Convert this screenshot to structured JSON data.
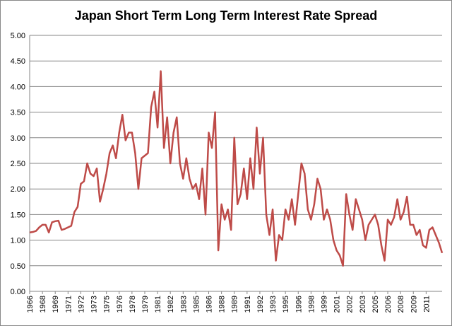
{
  "chart_data": {
    "type": "line",
    "title": "Japan Short Term Long Term Interest Rate Spread",
    "categories": [
      "1966",
      null,
      null,
      null,
      "1968",
      null,
      null,
      null,
      "1969",
      null,
      null,
      null,
      "1971",
      null,
      null,
      null,
      "1972",
      null,
      null,
      null,
      "1973",
      null,
      null,
      null,
      "1975",
      null,
      null,
      null,
      "1976",
      null,
      null,
      null,
      "1978",
      null,
      null,
      null,
      "1979",
      null,
      null,
      null,
      "1981",
      null,
      null,
      null,
      "1982",
      null,
      null,
      null,
      "1983",
      null,
      null,
      null,
      "1985",
      null,
      null,
      null,
      "1986",
      null,
      null,
      null,
      "1988",
      null,
      null,
      null,
      "1989",
      null,
      null,
      null,
      "1991",
      null,
      null,
      null,
      "1992",
      null,
      null,
      null,
      "1993",
      null,
      null,
      null,
      "1995",
      null,
      null,
      null,
      "1996",
      null,
      null,
      null,
      "1998",
      null,
      null,
      null,
      "1999",
      null,
      null,
      null,
      "2001",
      null,
      null,
      null,
      "2002",
      null,
      null,
      null,
      "2003",
      null,
      null,
      null,
      "2005",
      null,
      null,
      null,
      "2006",
      null,
      null,
      null,
      "2008",
      null,
      null,
      null,
      "2009",
      null,
      null,
      null,
      "2011",
      null,
      null,
      null,
      null,
      null
    ],
    "values": [
      1.15,
      1.16,
      1.18,
      1.25,
      1.3,
      1.3,
      1.15,
      1.35,
      1.37,
      1.38,
      1.2,
      1.22,
      1.25,
      1.28,
      1.55,
      1.65,
      2.1,
      2.15,
      2.5,
      2.3,
      2.25,
      2.4,
      1.75,
      2.0,
      2.3,
      2.7,
      2.85,
      2.6,
      3.1,
      3.45,
      2.95,
      3.1,
      3.1,
      2.7,
      2.0,
      2.6,
      2.65,
      2.7,
      3.6,
      3.9,
      3.2,
      4.3,
      2.8,
      3.4,
      2.5,
      3.1,
      3.4,
      2.5,
      2.2,
      2.6,
      2.2,
      2.0,
      2.1,
      1.8,
      2.4,
      1.5,
      3.1,
      2.8,
      3.5,
      0.8,
      1.7,
      1.4,
      1.6,
      1.2,
      3.0,
      1.7,
      1.9,
      2.4,
      1.8,
      2.6,
      2.0,
      3.2,
      2.3,
      3.0,
      1.5,
      1.1,
      1.6,
      0.6,
      1.1,
      1.0,
      1.6,
      1.4,
      1.8,
      1.3,
      1.9,
      2.5,
      2.3,
      1.6,
      1.4,
      1.7,
      2.2,
      2.0,
      1.4,
      1.6,
      1.4,
      1.0,
      0.8,
      0.7,
      0.5,
      1.9,
      1.5,
      1.2,
      1.8,
      1.6,
      1.4,
      1.0,
      1.3,
      1.4,
      1.5,
      1.3,
      0.9,
      0.6,
      1.4,
      1.3,
      1.45,
      1.8,
      1.4,
      1.55,
      1.85,
      1.3,
      1.3,
      1.1,
      1.2,
      0.9,
      0.85,
      1.2,
      1.25,
      1.1,
      0.95,
      0.75
    ],
    "color": "#be4b48",
    "ylim": [
      0,
      5
    ],
    "yticks": [
      {
        "value": 0,
        "label": "0.00"
      },
      {
        "value": 0.5,
        "label": "0.50"
      },
      {
        "value": 1,
        "label": "1.00"
      },
      {
        "value": 1.5,
        "label": "1.50"
      },
      {
        "value": 2,
        "label": "2.00"
      },
      {
        "value": 2.5,
        "label": "2.50"
      },
      {
        "value": 3,
        "label": "3.00"
      },
      {
        "value": 3.5,
        "label": "3.50"
      },
      {
        "value": 4,
        "label": "4.00"
      },
      {
        "value": 4.5,
        "label": "4.50"
      },
      {
        "value": 5,
        "label": "5.00"
      }
    ],
    "grid": true
  }
}
